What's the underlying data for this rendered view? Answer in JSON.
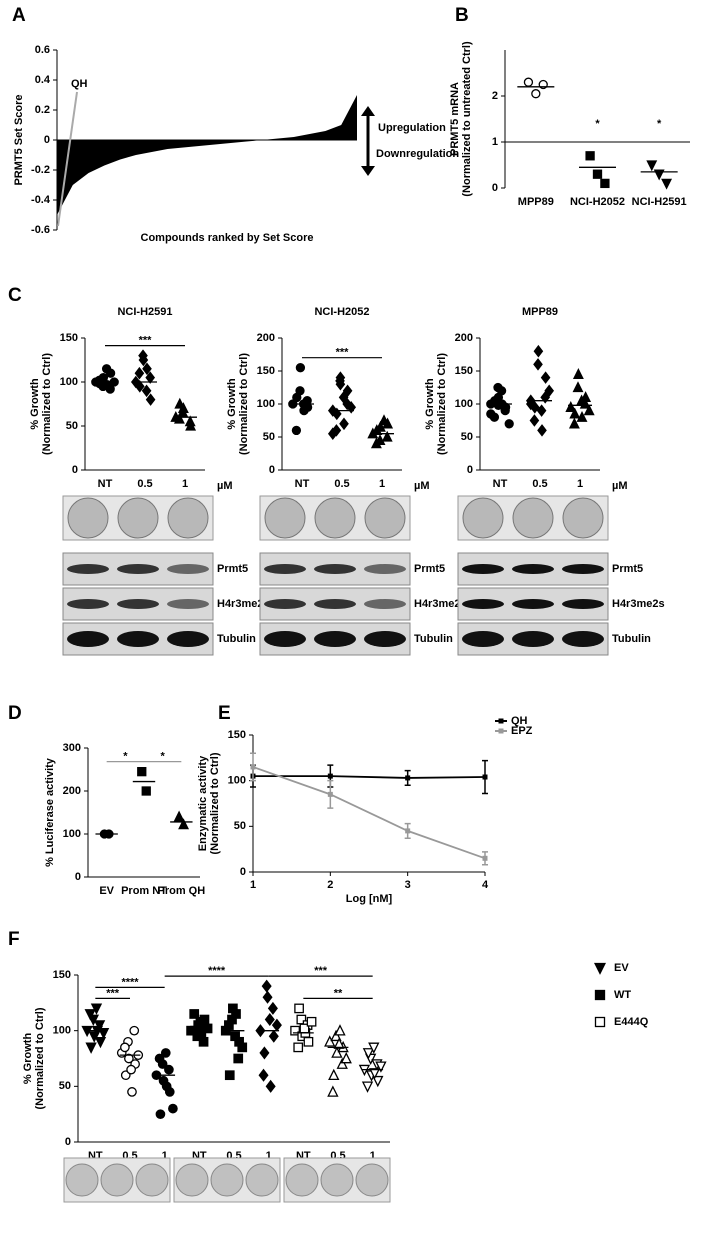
{
  "panel_labels": [
    "A",
    "B",
    "C",
    "D",
    "E",
    "F"
  ],
  "blot_labels": [
    "Prmt5",
    "H4r3me2s",
    "Tubulin"
  ],
  "chart_data": [
    {
      "type": "area",
      "ylabel": [
        "PRMT5 Set Score"
      ],
      "xlabel": "Compounds ranked by Set Score",
      "values": [
        -0.5,
        -0.3,
        -0.22,
        -0.17,
        -0.13,
        -0.1,
        -0.08,
        -0.06,
        -0.05,
        -0.04,
        -0.03,
        -0.02,
        -0.01,
        0,
        0.01,
        0.02,
        0.04,
        0.06,
        0.1,
        0.3
      ],
      "color": "#000000",
      "ylim": [
        -0.6,
        0.6
      ],
      "yticks": [
        0.6,
        0.4,
        0.2,
        0,
        -0.2,
        -0.4,
        -0.6
      ],
      "annotations": [
        "QH",
        "Upregulation",
        "Downregulation"
      ]
    },
    {
      "type": "dotplot",
      "ylabel": [
        "PRMT5 mRNA",
        "(Normalized to untreated Ctrl)"
      ],
      "ylim": [
        0,
        3
      ],
      "yticks": [
        0,
        1,
        2
      ],
      "refline": 1,
      "categories": [
        "MPP89",
        "NCI-H2052",
        "NCI-H2591"
      ],
      "groups": [
        {
          "marker": "circle-open",
          "points": [
            2.3,
            2.05,
            2.25
          ],
          "mean": 2.2
        },
        {
          "marker": "square",
          "points": [
            0.7,
            0.3,
            0.1
          ],
          "mean": 0.45
        },
        {
          "marker": "tri-down",
          "points": [
            0.5,
            0.3,
            0.1
          ],
          "mean": 0.35
        }
      ],
      "stars": [
        null,
        "*",
        "*"
      ]
    },
    {
      "type": "dotplot",
      "title": "NCI-H2591",
      "ylabel": [
        "% Growth",
        "(Normalized to Ctrl)"
      ],
      "unit": "µM",
      "ylim": [
        0,
        150
      ],
      "yticks": [
        0,
        50,
        100,
        150
      ],
      "categories": [
        "NT",
        "0.5",
        "1"
      ],
      "groups": [
        {
          "marker": "circle",
          "points": [
            100,
            105,
            95,
            110,
            92,
            98,
            102,
            97,
            115,
            100
          ],
          "mean": 100
        },
        {
          "marker": "diamond",
          "points": [
            100,
            125,
            130,
            80,
            105,
            95,
            110,
            115,
            90
          ],
          "mean": 100
        },
        {
          "marker": "tri-up",
          "points": [
            60,
            70,
            65,
            50,
            55,
            75,
            58
          ],
          "mean": 60
        }
      ],
      "brackets": [
        {
          "from": 0,
          "to": 2,
          "label": "***"
        }
      ]
    },
    {
      "type": "dotplot",
      "title": "NCI-H2052",
      "ylabel": [
        "% Growth",
        "(Normalized to Ctrl)"
      ],
      "unit": "µM",
      "ylim": [
        0,
        200
      ],
      "yticks": [
        0,
        50,
        100,
        150,
        200
      ],
      "categories": [
        "NT",
        "0.5",
        "1"
      ],
      "groups": [
        {
          "marker": "circle",
          "points": [
            100,
            155,
            120,
            95,
            105,
            110,
            60,
            90,
            100
          ],
          "mean": 100
        },
        {
          "marker": "diamond",
          "points": [
            90,
            130,
            135,
            120,
            100,
            85,
            60,
            70,
            110,
            95,
            55,
            140
          ],
          "mean": 90
        },
        {
          "marker": "tri-up",
          "points": [
            55,
            65,
            45,
            70,
            50,
            60,
            40,
            75
          ],
          "mean": 55
        }
      ],
      "brackets": [
        {
          "from": 0,
          "to": 2,
          "label": "***"
        }
      ]
    },
    {
      "type": "dotplot",
      "title": "MPP89",
      "ylabel": [
        "% Growth",
        "(Normalized to Ctrl)"
      ],
      "unit": "µM",
      "ylim": [
        0,
        200
      ],
      "yticks": [
        0,
        50,
        100,
        150,
        200
      ],
      "categories": [
        "NT",
        "0.5",
        "1"
      ],
      "groups": [
        {
          "marker": "circle",
          "points": [
            100,
            110,
            125,
            95,
            90,
            105,
            80,
            100,
            120,
            70,
            85,
            98
          ],
          "mean": 100
        },
        {
          "marker": "diamond",
          "points": [
            105,
            180,
            160,
            140,
            110,
            95,
            75,
            60,
            90,
            120,
            100
          ],
          "mean": 105
        },
        {
          "marker": "tri-up",
          "points": [
            95,
            145,
            125,
            110,
            100,
            85,
            70,
            80,
            105,
            90
          ],
          "mean": 98
        }
      ]
    },
    {
      "type": "dotplot",
      "ylabel": [
        "% Luciferase activity"
      ],
      "ylim": [
        0,
        300
      ],
      "yticks": [
        0,
        100,
        200,
        300
      ],
      "categories": [
        "EV",
        "Prom NT",
        "Prom QH"
      ],
      "groups": [
        {
          "marker": "circle",
          "points": [
            100,
            100
          ],
          "mean": 100
        },
        {
          "marker": "square",
          "points": [
            245,
            200
          ],
          "mean": 222
        },
        {
          "marker": "tri-up",
          "points": [
            140,
            122
          ],
          "mean": 128
        }
      ],
      "brackets": [
        {
          "from": 0,
          "to": 1,
          "label": "*"
        },
        {
          "from": 1,
          "to": 2,
          "label": "*"
        }
      ],
      "bracket_color": "#999999"
    },
    {
      "type": "line",
      "ylabel": [
        "Enzymatic activity",
        "(Normalized to Ctrl)"
      ],
      "xlabel": "Log [nM]",
      "x": [
        1,
        2,
        3,
        4
      ],
      "xlim": [
        1,
        4
      ],
      "xticks": [
        1,
        2,
        3,
        4
      ],
      "ylim": [
        0,
        150
      ],
      "yticks": [
        0,
        50,
        100,
        150
      ],
      "legend": "upper right",
      "series": [
        {
          "name": "QH",
          "color": "#000000",
          "values": [
            105,
            105,
            103,
            104
          ],
          "errors": [
            12,
            12,
            8,
            18
          ]
        },
        {
          "name": "EPZ",
          "color": "#999999",
          "values": [
            115,
            85,
            45,
            15
          ],
          "errors": [
            15,
            15,
            8,
            7
          ]
        }
      ]
    },
    {
      "type": "dotplot",
      "ylabel": [
        "% Growth",
        "(Normalized to Ctrl)"
      ],
      "ylim": [
        0,
        150
      ],
      "yticks": [
        0,
        50,
        100,
        150
      ],
      "categories": [
        "NT",
        "0.5",
        "1",
        "NT",
        "0.5",
        "1",
        "NT",
        "0.5",
        "1"
      ],
      "groups": [
        {
          "marker": "tri-down",
          "points": [
            100,
            95,
            110,
            90,
            105,
            85,
            115,
            100,
            120,
            98
          ],
          "mean": 100
        },
        {
          "marker": "circle-open",
          "points": [
            80,
            75,
            90,
            70,
            100,
            60,
            85,
            45,
            65,
            78
          ],
          "mean": 78
        },
        {
          "marker": "circle",
          "points": [
            60,
            55,
            70,
            45,
            65,
            25,
            75,
            50,
            80,
            30
          ],
          "mean": 60
        },
        {
          "marker": "square",
          "points": [
            100,
            105,
            95,
            110,
            90,
            100,
            115,
            98,
            108,
            102
          ],
          "mean": 102
        },
        {
          "marker": "square",
          "points": [
            100,
            120,
            110,
            90,
            75,
            60,
            105,
            115,
            95,
            85
          ],
          "mean": 100
        },
        {
          "marker": "diamond",
          "points": [
            100,
            130,
            140,
            95,
            120,
            80,
            60,
            50,
            110,
            105
          ],
          "mean": 100
        },
        {
          "marker": "square-open",
          "points": [
            100,
            95,
            110,
            90,
            105,
            120,
            85,
            98,
            102,
            108
          ],
          "mean": 98
        },
        {
          "marker": "tri-up-open",
          "points": [
            90,
            80,
            95,
            85,
            70,
            60,
            45,
            100,
            88,
            75
          ],
          "mean": 85
        },
        {
          "marker": "tri-down-open",
          "points": [
            65,
            60,
            75,
            55,
            70,
            80,
            50,
            62,
            85,
            68
          ],
          "mean": 65
        }
      ],
      "brackets": [
        {
          "from": 0,
          "to": 1,
          "label": "***"
        },
        {
          "from": 0,
          "to": 2,
          "label": "****"
        },
        {
          "from": 2,
          "to": 5,
          "label": "****"
        },
        {
          "from": 5,
          "to": 8,
          "label": "***"
        },
        {
          "from": 6,
          "to": 8,
          "label": "**"
        }
      ],
      "legend": [
        {
          "name": "EV",
          "marker": "tri-down"
        },
        {
          "name": "WT",
          "marker": "square"
        },
        {
          "name": "E444Q",
          "marker": "square-open"
        }
      ]
    }
  ]
}
